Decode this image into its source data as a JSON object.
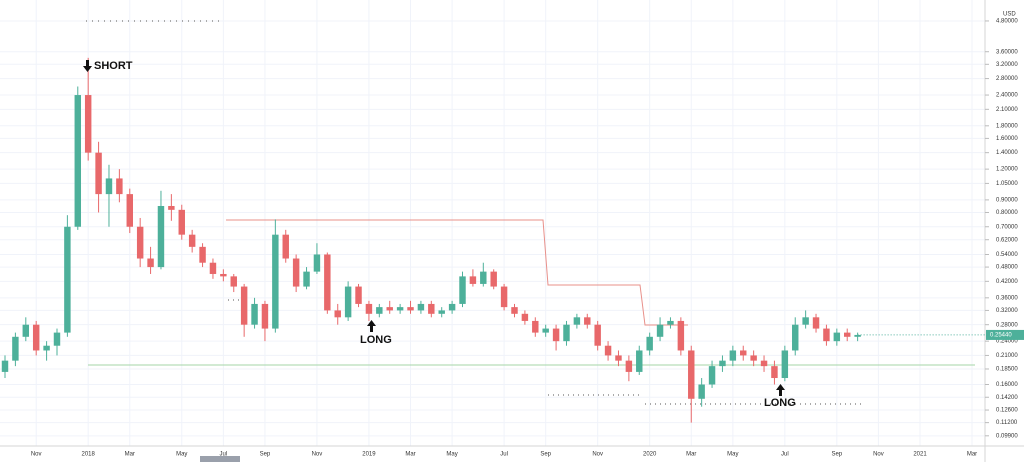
{
  "chart_data": {
    "type": "candlestick",
    "currency": "USD",
    "annotations": [
      "SHORT",
      "LONG",
      "LONG"
    ],
    "last_price_label": "0.25440",
    "up_color": "#4db09a",
    "down_color": "#e8686a",
    "grid": true,
    "log_scale": true,
    "ylim": [
      0.09,
      5.84
    ],
    "yticks": [
      {
        "value": 4.8,
        "label": "4.80000"
      },
      {
        "value": 3.6,
        "label": "3.60000"
      },
      {
        "value": 3.2,
        "label": "3.20000"
      },
      {
        "value": 2.8,
        "label": "2.80000"
      },
      {
        "value": 2.4,
        "label": "2.40000"
      },
      {
        "value": 2.1,
        "label": "2.10000"
      },
      {
        "value": 1.8,
        "label": "1.80000"
      },
      {
        "value": 1.6,
        "label": "1.60000"
      },
      {
        "value": 1.4,
        "label": "1.40000"
      },
      {
        "value": 1.2,
        "label": "1.20000"
      },
      {
        "value": 1.05,
        "label": "1.05000"
      },
      {
        "value": 0.9,
        "label": "0.90000"
      },
      {
        "value": 0.8,
        "label": "0.80000"
      },
      {
        "value": 0.7,
        "label": "0.70000"
      },
      {
        "value": 0.62,
        "label": "0.62000"
      },
      {
        "value": 0.54,
        "label": "0.54000"
      },
      {
        "value": 0.48,
        "label": "0.48000"
      },
      {
        "value": 0.42,
        "label": "0.42000"
      },
      {
        "value": 0.36,
        "label": "0.36000"
      },
      {
        "value": 0.32,
        "label": "0.32000"
      },
      {
        "value": 0.28,
        "label": "0.28000"
      },
      {
        "value": 0.24,
        "label": "0.24000"
      },
      {
        "value": 0.21,
        "label": "0.21000"
      },
      {
        "value": 0.185,
        "label": "0.18500"
      },
      {
        "value": 0.16,
        "label": "0.16000"
      },
      {
        "value": 0.142,
        "label": "0.14200"
      },
      {
        "value": 0.126,
        "label": "0.12600"
      },
      {
        "value": 0.112,
        "label": "0.11200"
      },
      {
        "value": 0.099,
        "label": "0.09900"
      }
    ],
    "categories": [
      null,
      null,
      null,
      "Nov",
      null,
      null,
      null,
      null,
      "2018",
      null,
      null,
      null,
      "Mar",
      null,
      null,
      null,
      null,
      "May",
      null,
      null,
      null,
      "Jul",
      null,
      null,
      null,
      "Sep",
      null,
      null,
      null,
      null,
      "Nov",
      null,
      null,
      null,
      null,
      "2019",
      null,
      null,
      null,
      "Mar",
      null,
      null,
      null,
      "May",
      null,
      null,
      null,
      null,
      "Jul",
      null,
      null,
      null,
      "Sep",
      null,
      null,
      null,
      null,
      "Nov",
      null,
      null,
      null,
      null,
      "2020",
      null,
      null,
      null,
      "Mar",
      null,
      null,
      null,
      "May",
      null,
      null,
      null,
      null,
      "Jul",
      null,
      null,
      null,
      null,
      "Sep",
      null,
      null,
      null,
      "Nov",
      null,
      null,
      null,
      "2021",
      null,
      null,
      null,
      null,
      "Mar"
    ],
    "open": [
      0.18,
      0.2,
      0.25,
      0.28,
      0.22,
      0.23,
      0.26,
      0.7,
      2.4,
      1.4,
      0.95,
      1.1,
      0.95,
      0.7,
      0.52,
      0.48,
      0.85,
      0.82,
      0.65,
      0.58,
      0.5,
      0.45,
      0.44,
      0.4,
      0.28,
      0.34,
      0.27,
      0.65,
      0.52,
      0.4,
      0.46,
      0.54,
      0.32,
      0.3,
      0.4,
      0.34,
      0.31,
      0.33,
      0.32,
      0.33,
      0.32,
      0.34,
      0.31,
      0.32,
      0.34,
      0.44,
      0.41,
      0.46,
      0.4,
      0.33,
      0.31,
      0.29,
      0.26,
      0.27,
      0.24,
      0.28,
      0.3,
      0.28,
      0.23,
      0.21,
      0.2,
      0.18,
      0.22,
      0.25,
      0.28,
      0.29,
      0.22,
      0.14,
      0.16,
      0.19,
      0.2,
      0.22,
      0.21,
      0.2,
      0.19,
      0.17,
      0.22,
      0.28,
      0.3,
      0.27,
      0.24,
      0.26,
      0.25,
      null,
      null,
      null,
      null,
      null,
      null,
      null,
      null,
      null,
      null,
      null
    ],
    "high": [
      0.21,
      0.26,
      0.3,
      0.29,
      0.24,
      0.27,
      0.78,
      2.6,
      3.4,
      1.55,
      1.25,
      1.2,
      1.0,
      0.76,
      0.58,
      0.98,
      0.95,
      0.86,
      0.68,
      0.6,
      0.52,
      0.47,
      0.45,
      0.41,
      0.36,
      0.35,
      0.75,
      0.68,
      0.54,
      0.48,
      0.6,
      0.55,
      0.34,
      0.42,
      0.41,
      0.35,
      0.34,
      0.35,
      0.34,
      0.35,
      0.35,
      0.35,
      0.33,
      0.35,
      0.46,
      0.47,
      0.5,
      0.47,
      0.41,
      0.34,
      0.32,
      0.3,
      0.28,
      0.28,
      0.29,
      0.31,
      0.31,
      0.29,
      0.24,
      0.22,
      0.21,
      0.23,
      0.26,
      0.3,
      0.3,
      0.3,
      0.23,
      0.17,
      0.2,
      0.21,
      0.23,
      0.23,
      0.22,
      0.21,
      0.2,
      0.23,
      0.3,
      0.32,
      0.31,
      0.28,
      0.27,
      0.27,
      0.26,
      null,
      null,
      null,
      null,
      null,
      null,
      null,
      null,
      null,
      null,
      null
    ],
    "low": [
      0.17,
      0.19,
      0.24,
      0.21,
      0.2,
      0.21,
      0.25,
      0.68,
      1.3,
      0.8,
      0.7,
      0.88,
      0.66,
      0.48,
      0.45,
      0.47,
      0.74,
      0.62,
      0.55,
      0.48,
      0.43,
      0.42,
      0.38,
      0.25,
      0.27,
      0.24,
      0.26,
      0.5,
      0.38,
      0.39,
      0.45,
      0.31,
      0.28,
      0.29,
      0.33,
      0.29,
      0.3,
      0.31,
      0.31,
      0.31,
      0.31,
      0.3,
      0.3,
      0.31,
      0.33,
      0.4,
      0.4,
      0.39,
      0.32,
      0.3,
      0.28,
      0.25,
      0.25,
      0.22,
      0.23,
      0.27,
      0.27,
      0.22,
      0.2,
      0.19,
      0.165,
      0.175,
      0.21,
      0.24,
      0.27,
      0.21,
      0.112,
      0.13,
      0.155,
      0.18,
      0.19,
      0.2,
      0.19,
      0.18,
      0.16,
      0.165,
      0.21,
      0.27,
      0.26,
      0.23,
      0.23,
      0.24,
      0.24,
      null,
      null,
      null,
      null,
      null,
      null,
      null,
      null,
      null,
      null,
      null
    ],
    "close": [
      0.2,
      0.25,
      0.28,
      0.22,
      0.23,
      0.26,
      0.7,
      2.4,
      1.4,
      0.95,
      1.1,
      0.95,
      0.7,
      0.52,
      0.48,
      0.85,
      0.82,
      0.65,
      0.58,
      0.5,
      0.45,
      0.44,
      0.4,
      0.28,
      0.34,
      0.27,
      0.65,
      0.52,
      0.4,
      0.46,
      0.54,
      0.32,
      0.3,
      0.4,
      0.34,
      0.31,
      0.33,
      0.32,
      0.33,
      0.32,
      0.34,
      0.31,
      0.32,
      0.34,
      0.44,
      0.41,
      0.46,
      0.4,
      0.33,
      0.31,
      0.29,
      0.26,
      0.27,
      0.24,
      0.28,
      0.3,
      0.28,
      0.23,
      0.21,
      0.2,
      0.18,
      0.22,
      0.25,
      0.28,
      0.29,
      0.22,
      0.14,
      0.16,
      0.19,
      0.2,
      0.22,
      0.21,
      0.2,
      0.19,
      0.17,
      0.22,
      0.28,
      0.3,
      0.27,
      0.24,
      0.26,
      0.25,
      0.2544,
      null,
      null,
      null,
      null,
      null,
      null,
      null,
      null,
      null,
      null,
      null
    ]
  }
}
